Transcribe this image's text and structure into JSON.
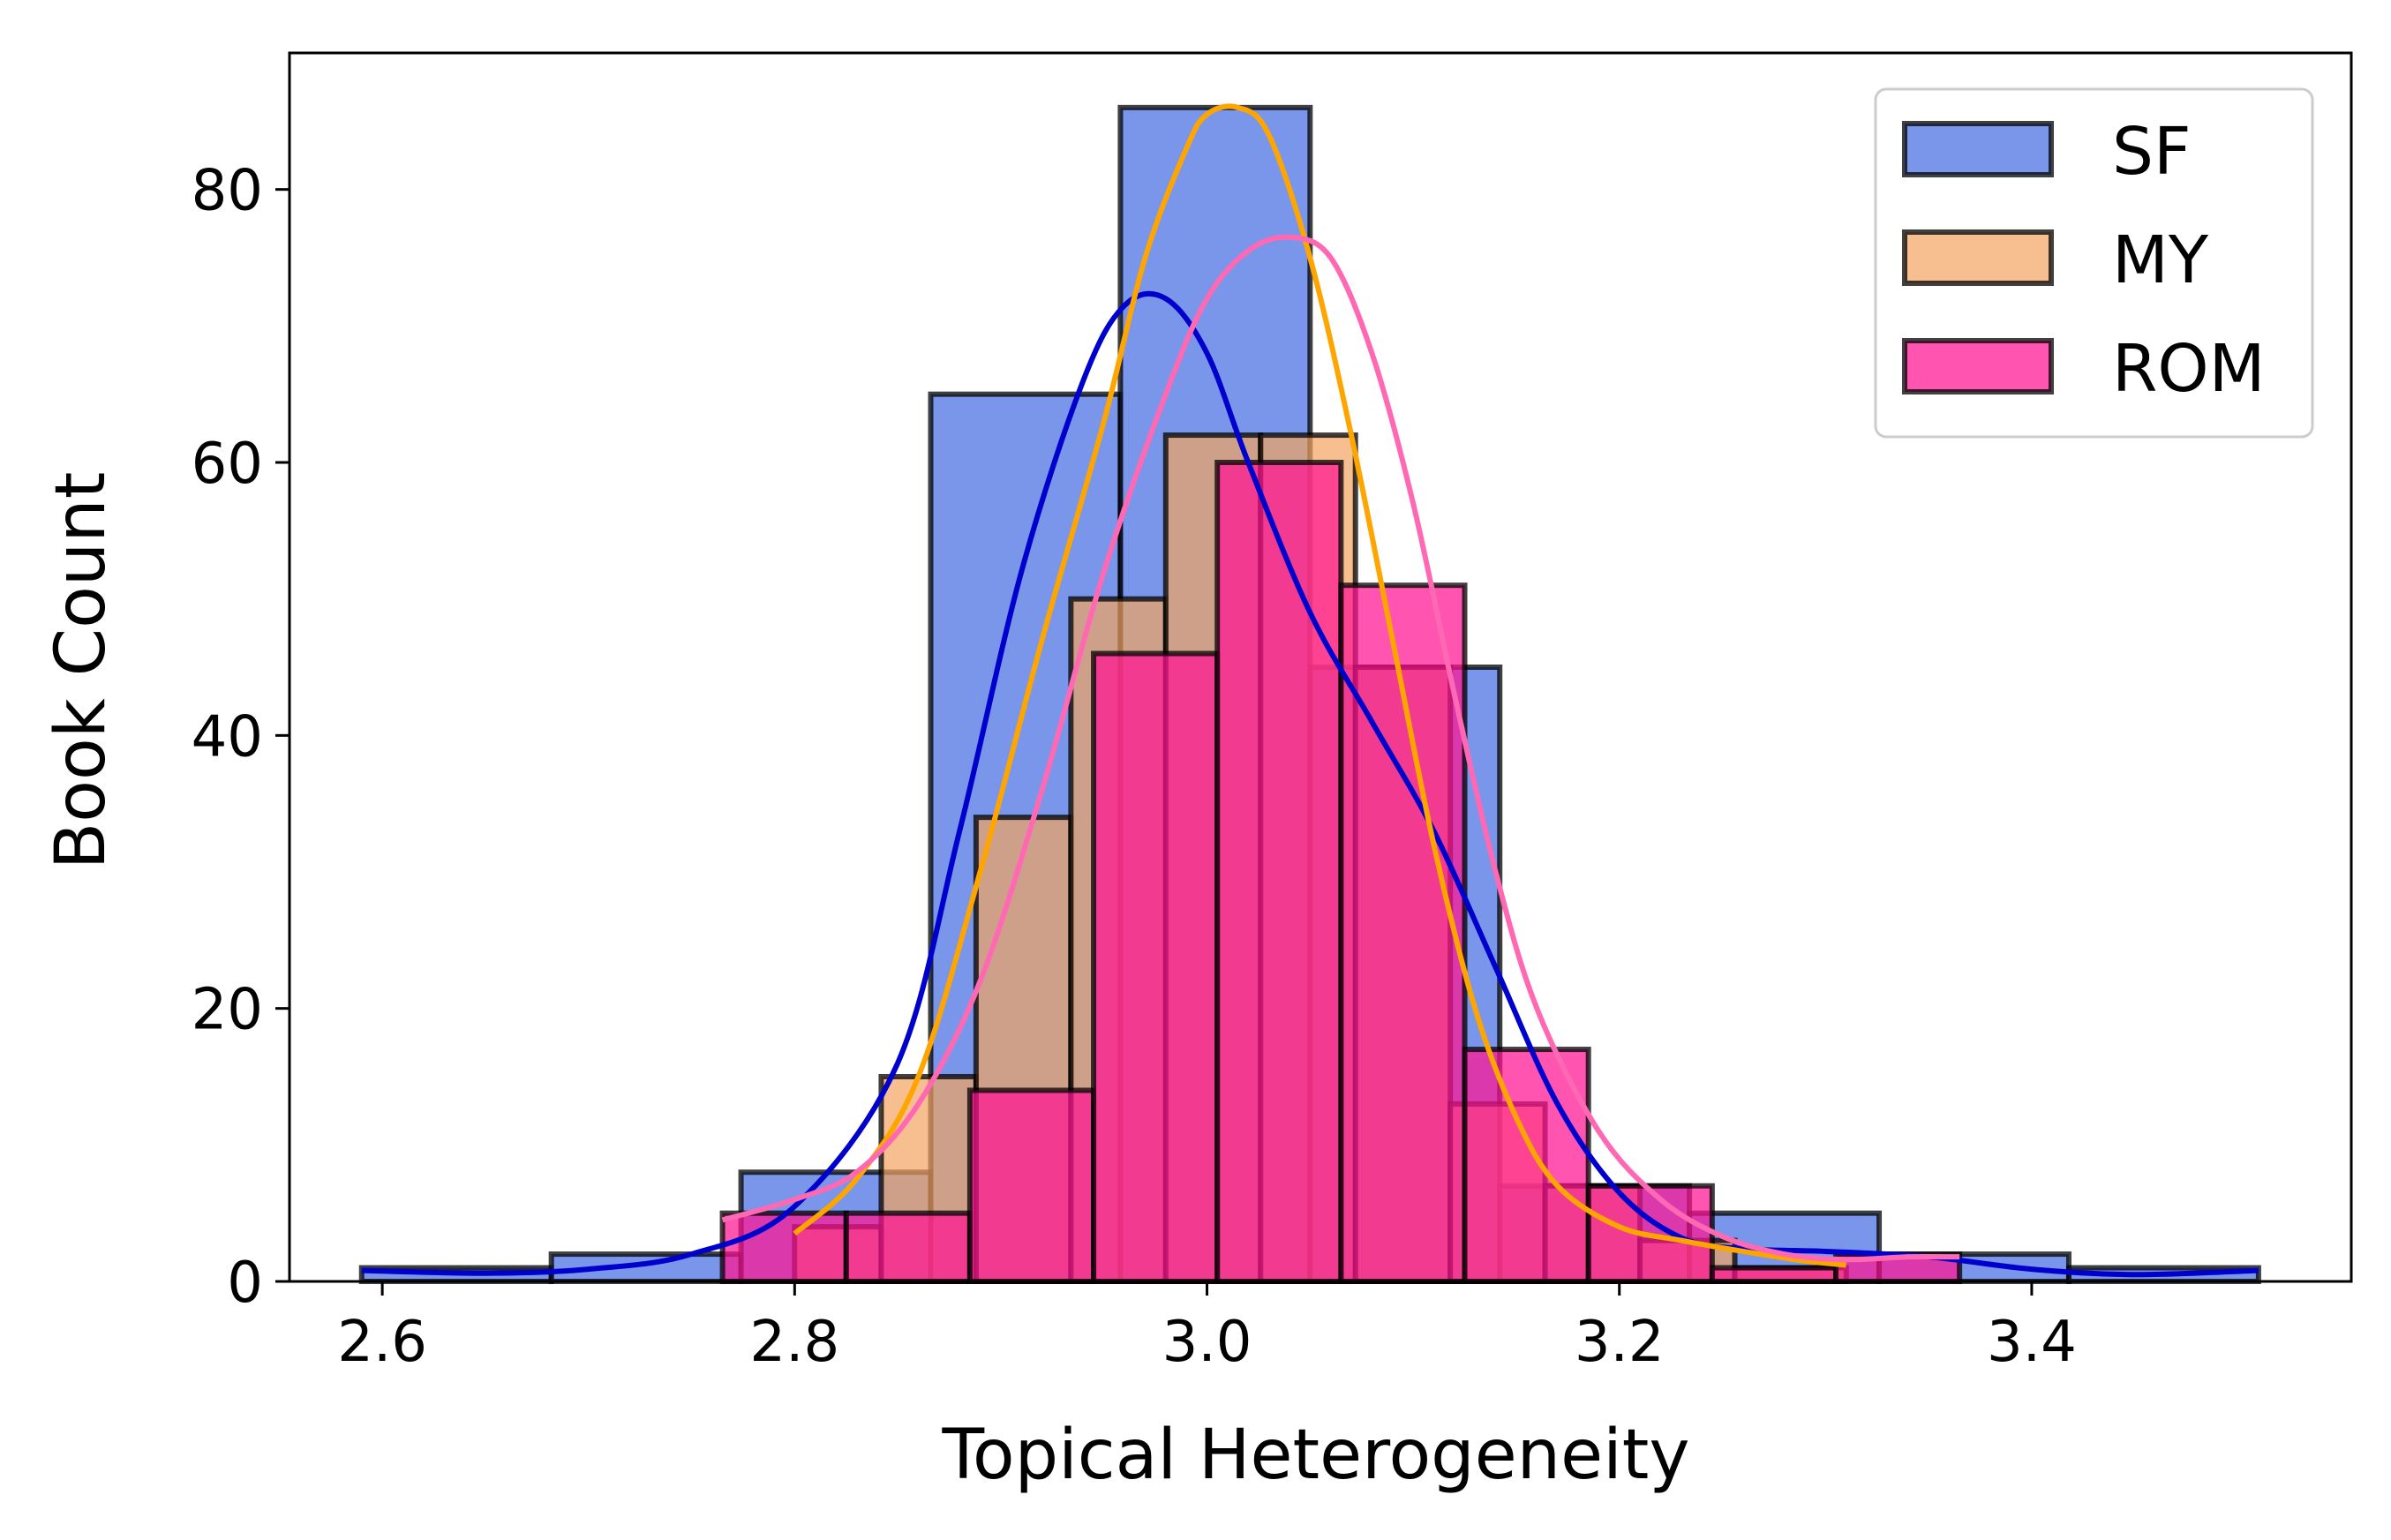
{
  "chart_data": {
    "type": "histogram",
    "title": "",
    "xlabel": "Topical Heterogeneity",
    "ylabel": "Book Count",
    "xlim": [
      2.555,
      3.555
    ],
    "ylim": [
      0,
      90
    ],
    "xticks": [
      2.6,
      2.8,
      3.0,
      3.2,
      3.4
    ],
    "xtick_labels": [
      "2.6",
      "2.8",
      "3.0",
      "3.2",
      "3.4"
    ],
    "yticks": [
      0,
      20,
      40,
      60,
      80
    ],
    "ytick_labels": [
      "0",
      "20",
      "40",
      "60",
      "80"
    ],
    "legend_position": "top-right",
    "series": [
      {
        "name": "SF",
        "fill": "#4169E1",
        "fill_opacity": 0.7,
        "kde_color": "#0000CD",
        "bins": [
          {
            "x0": 2.59,
            "x1": 2.682,
            "count": 1
          },
          {
            "x0": 2.682,
            "x1": 2.774,
            "count": 2
          },
          {
            "x0": 2.774,
            "x1": 2.866,
            "count": 8
          },
          {
            "x0": 2.866,
            "x1": 2.958,
            "count": 65
          },
          {
            "x0": 2.958,
            "x1": 3.05,
            "count": 86
          },
          {
            "x0": 3.05,
            "x1": 3.142,
            "count": 45
          },
          {
            "x0": 3.142,
            "x1": 3.234,
            "count": 7
          },
          {
            "x0": 3.234,
            "x1": 3.326,
            "count": 5
          },
          {
            "x0": 3.326,
            "x1": 3.418,
            "count": 2
          },
          {
            "x0": 3.418,
            "x1": 3.51,
            "count": 1
          }
        ],
        "kde": {
          "x": [
            2.59,
            2.65,
            2.7,
            2.75,
            2.8,
            2.85,
            2.88,
            2.91,
            2.94,
            2.96,
            2.98,
            3.0,
            3.02,
            3.05,
            3.08,
            3.11,
            3.14,
            3.17,
            3.2,
            3.23,
            3.26,
            3.3,
            3.35,
            3.4,
            3.45,
            3.51
          ],
          "y": [
            0.8,
            0.6,
            0.9,
            2.0,
            5.5,
            16,
            33,
            52,
            66,
            71.5,
            72,
            68,
            60,
            49,
            41,
            33,
            23,
            13,
            6.5,
            3.2,
            2.4,
            2.2,
            1.8,
            0.9,
            0.5,
            0.8
          ]
        }
      },
      {
        "name": "MY",
        "fill": "#F4A460",
        "fill_opacity": 0.7,
        "kde_color": "#FFA500",
        "bins": [
          {
            "x0": 2.8,
            "x1": 2.842,
            "count": 4
          },
          {
            "x0": 2.842,
            "x1": 2.888,
            "count": 15
          },
          {
            "x0": 2.888,
            "x1": 2.934,
            "count": 34
          },
          {
            "x0": 2.934,
            "x1": 2.98,
            "count": 50
          },
          {
            "x0": 2.98,
            "x1": 3.026,
            "count": 62
          },
          {
            "x0": 3.026,
            "x1": 3.072,
            "count": 62
          },
          {
            "x0": 3.072,
            "x1": 3.118,
            "count": 45
          },
          {
            "x0": 3.118,
            "x1": 3.164,
            "count": 13
          },
          {
            "x0": 3.164,
            "x1": 3.21,
            "count": 7
          },
          {
            "x0": 3.21,
            "x1": 3.256,
            "count": 3
          },
          {
            "x0": 3.256,
            "x1": 3.31,
            "count": 1
          }
        ],
        "kde": {
          "x": [
            2.8,
            2.83,
            2.86,
            2.89,
            2.92,
            2.95,
            2.97,
            2.99,
            3.0,
            3.015,
            3.03,
            3.05,
            3.07,
            3.09,
            3.11,
            3.13,
            3.15,
            3.17,
            3.2,
            3.23,
            3.26,
            3.29,
            3.31
          ],
          "y": [
            3.5,
            7.5,
            15,
            30,
            47,
            63,
            75,
            83,
            85.5,
            86,
            84,
            75,
            62,
            47,
            32,
            20,
            12,
            7,
            4,
            3,
            2.2,
            1.5,
            1.2
          ]
        }
      },
      {
        "name": "ROM",
        "fill": "#FF1493",
        "fill_opacity": 0.72,
        "kde_color": "#FF69B4",
        "bins": [
          {
            "x0": 2.765,
            "x1": 2.825,
            "count": 5
          },
          {
            "x0": 2.825,
            "x1": 2.885,
            "count": 5
          },
          {
            "x0": 2.885,
            "x1": 2.945,
            "count": 14
          },
          {
            "x0": 2.945,
            "x1": 3.005,
            "count": 46
          },
          {
            "x0": 3.005,
            "x1": 3.065,
            "count": 60
          },
          {
            "x0": 3.065,
            "x1": 3.125,
            "count": 51
          },
          {
            "x0": 3.125,
            "x1": 3.185,
            "count": 17
          },
          {
            "x0": 3.185,
            "x1": 3.245,
            "count": 7
          },
          {
            "x0": 3.245,
            "x1": 3.305,
            "count": 1
          },
          {
            "x0": 3.305,
            "x1": 3.365,
            "count": 2
          }
        ],
        "kde": {
          "x": [
            2.765,
            2.8,
            2.83,
            2.86,
            2.89,
            2.92,
            2.95,
            2.98,
            3.0,
            3.02,
            3.04,
            3.06,
            3.08,
            3.1,
            3.12,
            3.14,
            3.16,
            3.19,
            3.22,
            3.25,
            3.28,
            3.31,
            3.34,
            3.365
          ],
          "y": [
            4.5,
            6,
            8,
            13,
            22,
            36,
            52,
            65,
            72,
            75.5,
            76.5,
            75,
            68,
            57,
            43,
            30,
            20,
            11,
            6,
            3.3,
            2,
            1.6,
            1.8,
            1.8
          ]
        }
      }
    ]
  }
}
